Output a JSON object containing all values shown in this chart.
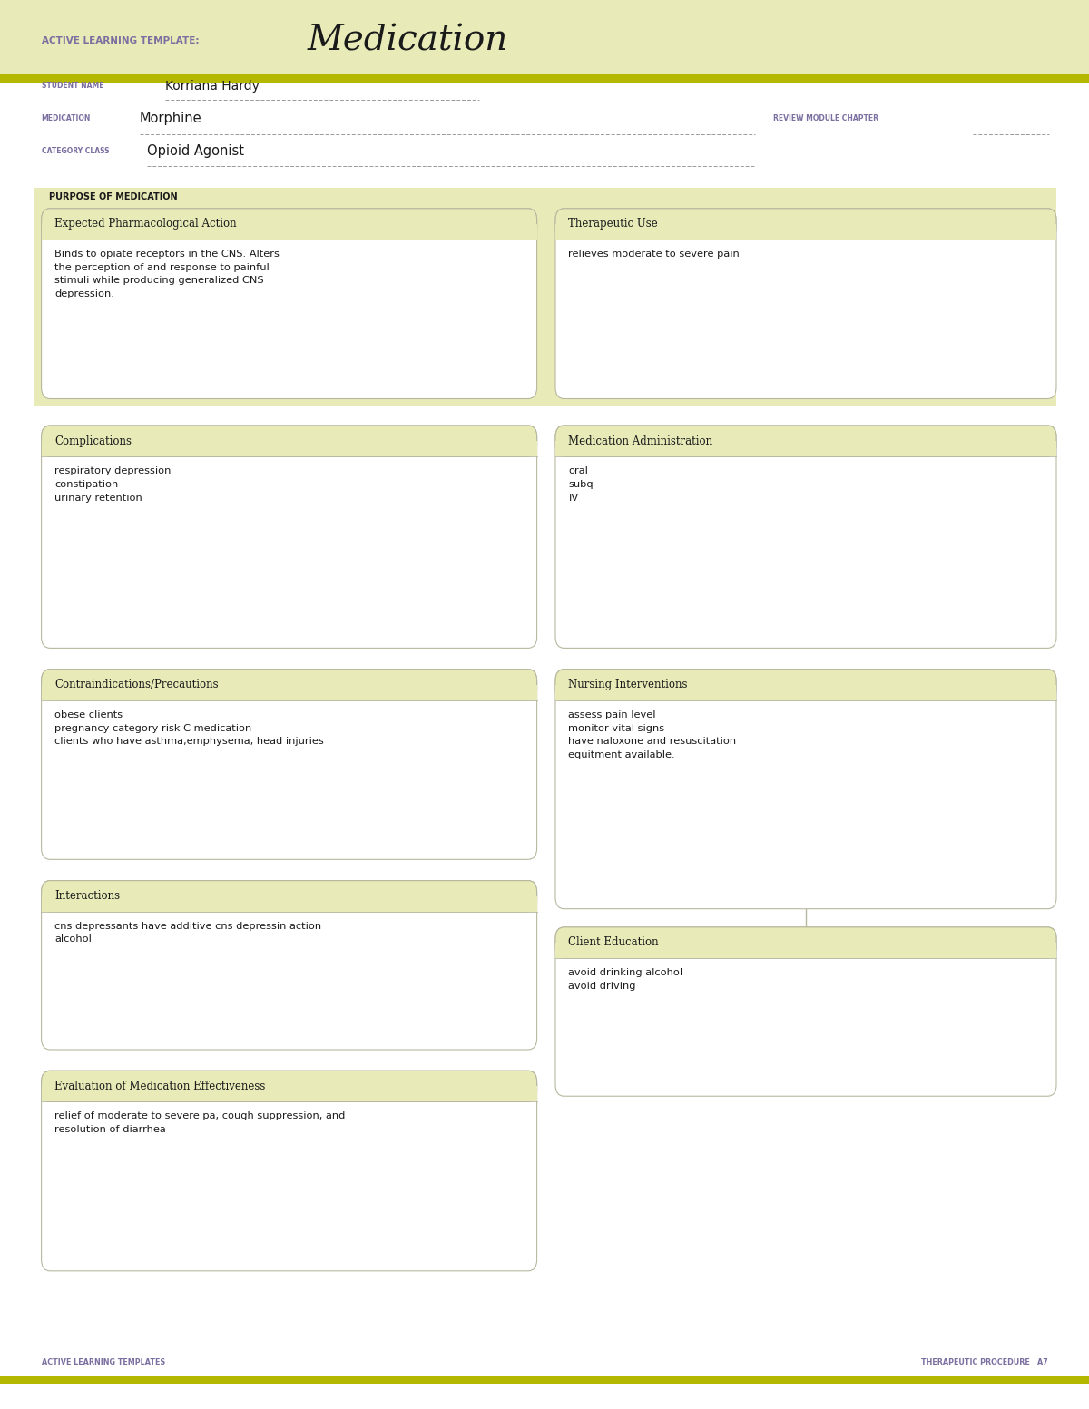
{
  "page_bg": "#ffffff",
  "header_bg": "#e8ebb8",
  "olive_line": "#b5b800",
  "purple_label": "#7b6fa0",
  "dark_text": "#1a1a1a",
  "box_border": "#b8b8a0",
  "box_bg": "#ffffff",
  "hdr_bg": "#e8ebb8",
  "header_title": "Medication",
  "header_label": "ACTIVE LEARNING TEMPLATE:",
  "student_name_label": "STUDENT NAME",
  "student_name": "Korriana Hardy",
  "medication_label": "MEDICATION",
  "medication": "Morphine",
  "review_label": "REVIEW MODULE CHAPTER",
  "category_label": "CATEGORY CLASS",
  "category": "Opioid Agonist",
  "purpose_label": "PURPOSE OF MEDICATION",
  "box1_title": "Expected Pharmacological Action",
  "box1_content": "Binds to opiate receptors in the CNS. Alters\nthe perception of and response to painful\nstimuli while producing generalized CNS\ndepression.",
  "box2_title": "Therapeutic Use",
  "box2_content": "relieves moderate to severe pain",
  "box3_title": "Complications",
  "box3_content": "respiratory depression\nconstipation\nurinary retention",
  "box4_title": "Medication Administration",
  "box4_content": "oral\nsubq\nIV",
  "box5_title": "Contraindications/Precautions",
  "box5_content": "obese clients\npregnancy category risk C medication\nclients who have asthma,emphysema, head injuries",
  "box6_title": "Nursing Interventions",
  "box6_content": "assess pain level\nmonitor vital signs\nhave naloxone and resuscitation\nequitment available.",
  "box7_title": "Interactions",
  "box7_content": "cns depressants have additive cns depressin action\nalcohol",
  "box8_title": "Client Education",
  "box8_content": "avoid drinking alcohol\navoid driving",
  "box9_title": "Evaluation of Medication Effectiveness",
  "box9_content": "relief of moderate to severe pa, cough suppression, and\nresolution of diarrhea",
  "footer_left": "ACTIVE LEARNING TEMPLATES",
  "footer_right": "THERAPEUTIC PROCEDURE   A7"
}
